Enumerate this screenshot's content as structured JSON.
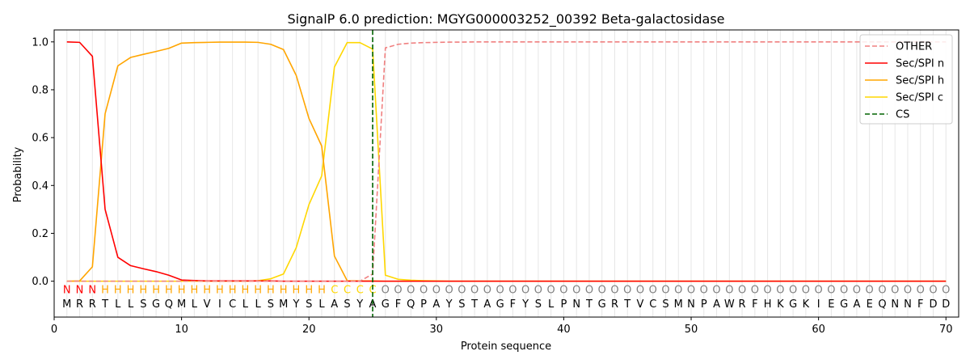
{
  "chart_data": {
    "type": "line",
    "title": "SignalP 6.0 prediction: MGYG000003252_00392 Beta-galactosidase",
    "xlabel": "Protein sequence",
    "ylabel": "Probability",
    "xlim": [
      0,
      71
    ],
    "ylim": [
      -0.15,
      1.05
    ],
    "xticks": [
      0,
      10,
      20,
      30,
      40,
      50,
      60,
      70
    ],
    "yticks": [
      0.0,
      0.2,
      0.4,
      0.6,
      0.8,
      1.0
    ],
    "ytick_labels": [
      "0.0",
      "0.2",
      "0.4",
      "0.6",
      "0.8",
      "1.0"
    ],
    "legend_position": "top-right",
    "sequence": [
      "M",
      "R",
      "R",
      "T",
      "L",
      "L",
      "S",
      "G",
      "Q",
      "M",
      "L",
      "V",
      "I",
      "C",
      "L",
      "L",
      "S",
      "M",
      "Y",
      "S",
      "L",
      "A",
      "S",
      "Y",
      "A",
      "G",
      "F",
      "Q",
      "P",
      "A",
      "Y",
      "S",
      "T",
      "A",
      "G",
      "F",
      "Y",
      "S",
      "L",
      "P",
      "N",
      "T",
      "G",
      "R",
      "T",
      "V",
      "C",
      "S",
      "M",
      "N",
      "P",
      "A",
      "W",
      "R",
      "F",
      "H",
      "K",
      "G",
      "K",
      "I",
      "E",
      "G",
      "A",
      "E",
      "Q",
      "N",
      "N",
      "F",
      "D",
      "D"
    ],
    "region_labels": [
      "N",
      "N",
      "N",
      "H",
      "H",
      "H",
      "H",
      "H",
      "H",
      "H",
      "H",
      "H",
      "H",
      "H",
      "H",
      "H",
      "H",
      "H",
      "H",
      "H",
      "H",
      "C",
      "C",
      "C",
      "C",
      "O",
      "O",
      "O",
      "O",
      "O",
      "O",
      "O",
      "O",
      "O",
      "O",
      "O",
      "O",
      "O",
      "O",
      "O",
      "O",
      "O",
      "O",
      "O",
      "O",
      "O",
      "O",
      "O",
      "O",
      "O",
      "O",
      "O",
      "O",
      "O",
      "O",
      "O",
      "O",
      "O",
      "O",
      "O",
      "O",
      "O",
      "O",
      "O",
      "O",
      "O",
      "O",
      "O",
      "O",
      "O"
    ],
    "region_colors": {
      "N": "#ff0000",
      "H": "#ffa500",
      "C": "#ffd700",
      "O": "#808080"
    },
    "cleavage_site": 25,
    "series": [
      {
        "name": "OTHER",
        "color": "#f08080",
        "dash": true,
        "values": [
          0,
          0,
          0,
          0,
          0,
          0,
          0,
          0,
          0,
          0,
          0,
          0,
          0,
          0,
          0,
          0,
          0,
          0,
          0,
          0,
          0,
          0,
          0,
          0,
          0.03,
          0.975,
          0.99,
          0.995,
          0.997,
          0.998,
          0.999,
          0.999,
          1,
          1,
          1,
          1,
          1,
          1,
          1,
          1,
          1,
          1,
          1,
          1,
          1,
          1,
          1,
          1,
          1,
          1,
          1,
          1,
          1,
          1,
          1,
          1,
          1,
          1,
          1,
          1,
          1,
          1,
          1,
          1,
          1,
          1,
          1,
          1,
          1,
          1
        ]
      },
      {
        "name": "Sec/SPI n",
        "color": "#ff0000",
        "dash": false,
        "values": [
          1.0,
          0.998,
          0.94,
          0.3,
          0.1,
          0.065,
          0.052,
          0.04,
          0.025,
          0.005,
          0.003,
          0.001,
          0.001,
          0.001,
          0.001,
          0.001,
          0.001,
          0,
          0,
          0,
          0,
          0,
          0,
          0,
          0,
          0,
          0,
          0,
          0,
          0,
          0,
          0,
          0,
          0,
          0,
          0,
          0,
          0,
          0,
          0,
          0,
          0,
          0,
          0,
          0,
          0,
          0,
          0,
          0,
          0,
          0,
          0,
          0,
          0,
          0,
          0,
          0,
          0,
          0,
          0,
          0,
          0,
          0,
          0,
          0,
          0,
          0,
          0,
          0,
          0
        ]
      },
      {
        "name": "Sec/SPI h",
        "color": "#ffa500",
        "dash": false,
        "values": [
          0,
          0.001,
          0.06,
          0.7,
          0.9,
          0.935,
          0.948,
          0.96,
          0.973,
          0.995,
          0.997,
          0.998,
          0.999,
          0.999,
          0.999,
          0.998,
          0.99,
          0.968,
          0.86,
          0.68,
          0.565,
          0.105,
          0.002,
          0.001,
          0.001,
          0,
          0,
          0,
          0,
          0,
          0,
          0,
          0,
          0,
          0,
          0,
          0,
          0,
          0,
          0,
          0,
          0,
          0,
          0,
          0,
          0,
          0,
          0,
          0,
          0,
          0,
          0,
          0,
          0,
          0,
          0,
          0,
          0,
          0,
          0,
          0,
          0,
          0,
          0,
          0,
          0,
          0,
          0,
          0,
          0
        ]
      },
      {
        "name": "Sec/SPI c",
        "color": "#ffd700",
        "dash": false,
        "values": [
          0,
          0,
          0,
          0,
          0,
          0,
          0,
          0,
          0,
          0,
          0,
          0,
          0,
          0,
          0,
          0.002,
          0.01,
          0.03,
          0.14,
          0.32,
          0.44,
          0.895,
          0.997,
          0.997,
          0.97,
          0.025,
          0.008,
          0.004,
          0.002,
          0.001,
          0,
          0,
          0,
          0,
          0,
          0,
          0,
          0,
          0,
          0,
          0,
          0,
          0,
          0,
          0,
          0,
          0,
          0,
          0,
          0,
          0,
          0,
          0,
          0,
          0,
          0,
          0,
          0,
          0,
          0,
          0,
          0,
          0,
          0,
          0,
          0,
          0,
          0,
          0,
          0
        ]
      }
    ],
    "legend_entries": [
      "OTHER",
      "Sec/SPI n",
      "Sec/SPI h",
      "Sec/SPI c",
      "CS"
    ],
    "cs_color": "#006400"
  }
}
